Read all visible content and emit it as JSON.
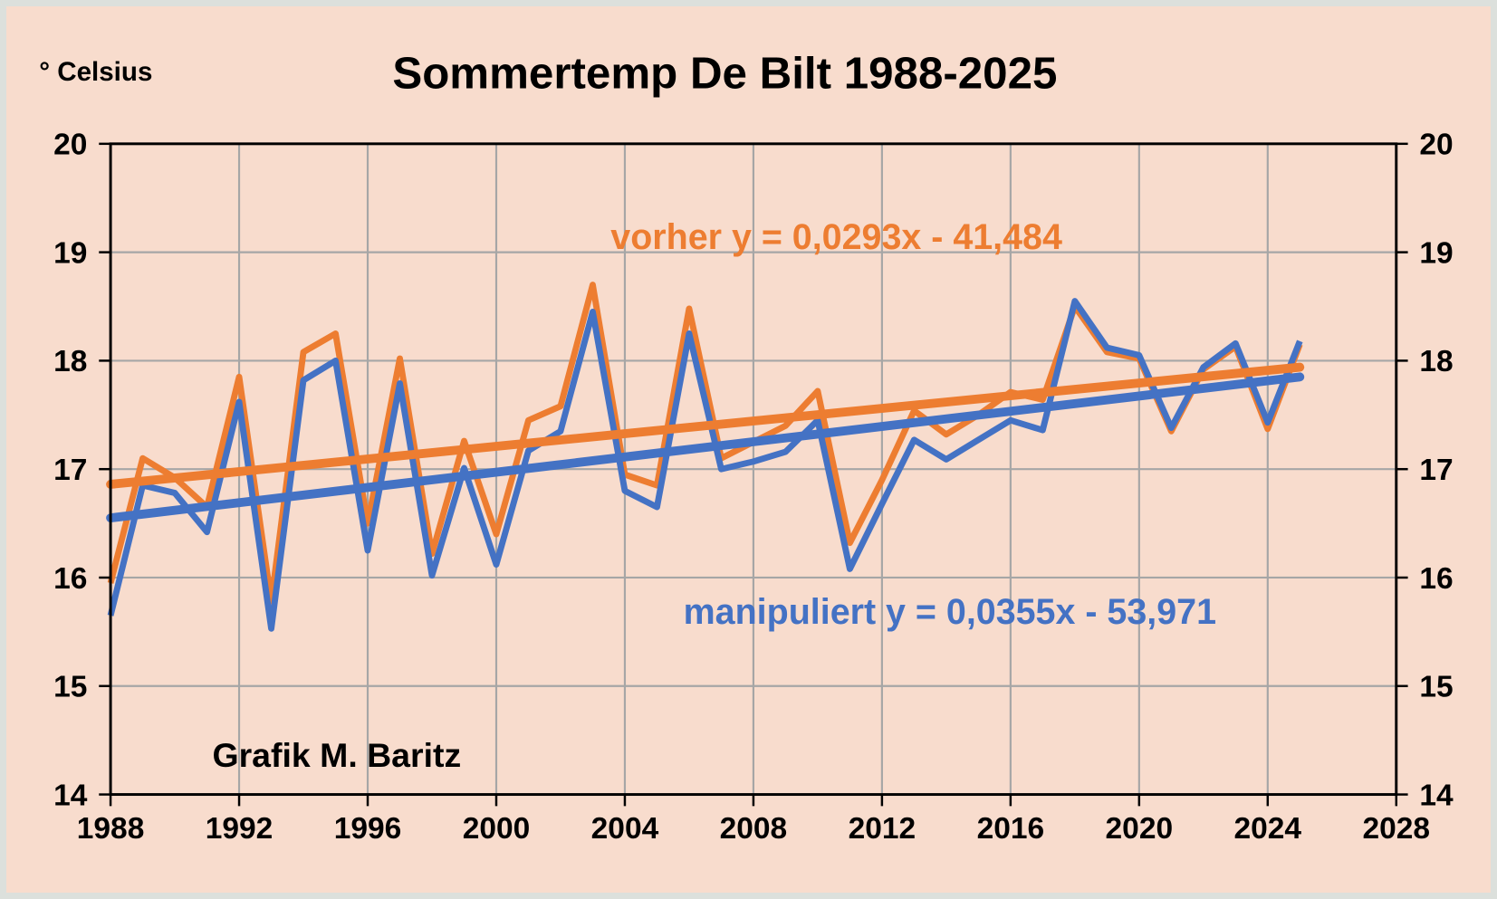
{
  "frame": {
    "background": "#F8DCCD",
    "border_color": "#DCE0DC"
  },
  "chart_data": {
    "type": "line",
    "title": "Sommertemp De Bilt 1988-2025",
    "y_axis_label": "° Celsius",
    "annotation": "Grafik M. Baritz",
    "xlim": [
      1988,
      2028
    ],
    "ylim": [
      14,
      20
    ],
    "x_ticks": [
      1988,
      1992,
      1996,
      2000,
      2004,
      2008,
      2012,
      2016,
      2020,
      2024,
      2028
    ],
    "y_ticks": [
      14,
      15,
      16,
      17,
      18,
      19,
      20
    ],
    "grid": true,
    "y_labels_both_sides": true,
    "legend_position": "none",
    "colors": {
      "gridline": "#A6A6A6",
      "axis": "#000000",
      "background": "#F8DCCD"
    },
    "x": [
      1988,
      1989,
      1990,
      1991,
      1992,
      1993,
      1994,
      1995,
      1996,
      1997,
      1998,
      1999,
      2000,
      2001,
      2002,
      2003,
      2004,
      2005,
      2006,
      2007,
      2008,
      2009,
      2010,
      2011,
      2012,
      2013,
      2014,
      2015,
      2016,
      2017,
      2018,
      2019,
      2020,
      2021,
      2022,
      2023,
      2024,
      2025
    ],
    "series": [
      {
        "name": "vorher",
        "color": "#ED7D31",
        "equation": "vorher y = 0,0293x - 41,484",
        "values": [
          15.95,
          17.1,
          16.92,
          16.65,
          17.85,
          15.78,
          18.08,
          18.25,
          16.5,
          18.02,
          16.22,
          17.26,
          16.4,
          17.45,
          17.58,
          18.7,
          16.95,
          16.85,
          18.48,
          17.1,
          17.25,
          17.4,
          17.72,
          16.32,
          16.9,
          17.54,
          17.32,
          17.5,
          17.71,
          17.64,
          18.5,
          18.08,
          18.02,
          17.35,
          17.92,
          18.13,
          17.37,
          18.15
        ],
        "trend": {
          "start_year": 1988,
          "start_value": 16.86,
          "end_year": 2025,
          "end_value": 17.94
        }
      },
      {
        "name": "manipuliert",
        "color": "#4472C4",
        "equation": "manipuliert y = 0,0355x - 53,971",
        "values": [
          15.65,
          16.85,
          16.78,
          16.42,
          17.62,
          15.53,
          17.82,
          18.0,
          16.25,
          17.79,
          16.02,
          17.01,
          16.12,
          17.17,
          17.35,
          18.45,
          16.8,
          16.65,
          18.25,
          17.0,
          17.07,
          17.16,
          17.45,
          16.08,
          16.68,
          17.27,
          17.09,
          17.27,
          17.45,
          17.36,
          18.55,
          18.12,
          18.05,
          17.38,
          17.94,
          18.16,
          17.43,
          18.18
        ],
        "trend": {
          "start_year": 1988,
          "start_value": 16.55,
          "end_year": 2025,
          "end_value": 17.85
        }
      }
    ]
  }
}
